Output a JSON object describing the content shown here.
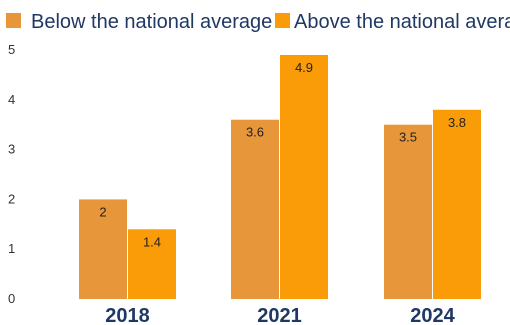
{
  "chart_data": {
    "type": "bar",
    "categories": [
      "2018",
      "2021",
      "2024"
    ],
    "series": [
      {
        "name": "Below the national average",
        "color": "#E8963A",
        "values": [
          2,
          3.6,
          3.5
        ]
      },
      {
        "name": "Above the national average",
        "color": "#FA9B08",
        "values": [
          1.4,
          4.9,
          3.8
        ]
      }
    ],
    "data_labels": [
      [
        "2",
        "3.6",
        "3.5"
      ],
      [
        "1.4",
        "4.9",
        "3.8"
      ]
    ],
    "ylim": [
      0,
      5
    ],
    "yticks": [
      0,
      1,
      2,
      3,
      4,
      5
    ],
    "grid": false,
    "legend_position": "top",
    "colors": {
      "axis_text": "#333333",
      "category_text": "#1F3864",
      "legend_text": "#1F3864",
      "data_label_text": "#222222",
      "divider": "#FFFFFF"
    }
  }
}
